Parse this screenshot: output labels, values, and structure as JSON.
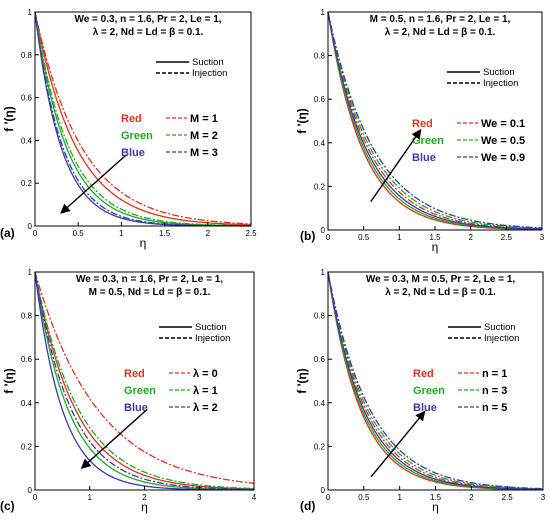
{
  "chart_data": [
    {
      "type": "line",
      "panel_label": "(a)",
      "params_line1": "We = 0.3, n = 1.6, Pr = 2,  Le = 1,",
      "params_line2": "λ = 2, Nd = Ld = β = 0.1.",
      "xlabel": "η",
      "ylabel": "f '(η)",
      "xlim": [
        0,
        2.5
      ],
      "ylim": [
        0,
        1
      ],
      "xticks": [
        "0",
        "0.5",
        "1",
        "1.5",
        "2",
        "2.5"
      ],
      "yticks": [
        "0",
        "0.2",
        "0.4",
        "0.6",
        "0.8",
        "1"
      ],
      "legend_styles": [
        {
          "label": "Suction",
          "dash": "solid"
        },
        {
          "label": "Injection",
          "dash": "dashed"
        }
      ],
      "legend_colors": [
        {
          "color_name": "Red",
          "param_label": "M = 1",
          "color": "#e0301e"
        },
        {
          "color_name": "Green",
          "param_label": "M = 2",
          "color": "#1faa1f"
        },
        {
          "color_name": "Blue",
          "param_label": "M = 3",
          "color": "#3a3aaa"
        }
      ],
      "arrow": {
        "from": [
          1.05,
          0.33
        ],
        "to": [
          0.3,
          0.06
        ]
      },
      "series": [
        {
          "color": "#e0301e",
          "dash": "solid",
          "k": 2.1
        },
        {
          "color": "#e0301e",
          "dash": "dashed",
          "k": 1.85
        },
        {
          "color": "#1faa1f",
          "dash": "solid",
          "k": 2.75
        },
        {
          "color": "#1faa1f",
          "dash": "dashed",
          "k": 2.55
        },
        {
          "color": "#3a3aaa",
          "dash": "solid",
          "k": 3.3
        },
        {
          "color": "#3a3aaa",
          "dash": "dashed",
          "k": 3.1
        }
      ]
    },
    {
      "type": "line",
      "panel_label": "(b)",
      "params_line1": "M = 0.5, n = 1.6, Pr = 2,  Le = 1,",
      "params_line2": "λ = 2, Nd = Ld = β = 0.1.",
      "xlabel": "η",
      "ylabel": "f '(η)",
      "xlim": [
        0,
        3
      ],
      "ylim": [
        0,
        1
      ],
      "xticks": [
        "0",
        "0.5",
        "1",
        "1.5",
        "2",
        "2.5",
        "3"
      ],
      "yticks": [
        "0",
        "0.2",
        "0.4",
        "0.6",
        "0.8",
        "1"
      ],
      "legend_styles": [
        {
          "label": "Suction",
          "dash": "solid"
        },
        {
          "label": "Injection",
          "dash": "dashed"
        }
      ],
      "legend_colors": [
        {
          "color_name": "Red",
          "param_label": "We = 0.1",
          "color": "#e0301e"
        },
        {
          "color_name": "Green",
          "param_label": "We = 0.5",
          "color": "#1faa1f"
        },
        {
          "color_name": "Blue",
          "param_label": "We = 0.9",
          "color": "#3a3aaa"
        }
      ],
      "arrow": {
        "from": [
          0.6,
          0.13
        ],
        "to": [
          1.3,
          0.46
        ]
      },
      "series": [
        {
          "color": "#e0301e",
          "dash": "solid",
          "k": 2.05
        },
        {
          "color": "#e0301e",
          "dash": "dashed",
          "k": 1.75
        },
        {
          "color": "#1faa1f",
          "dash": "solid",
          "k": 1.95
        },
        {
          "color": "#1faa1f",
          "dash": "dashed",
          "k": 1.65
        },
        {
          "color": "#3a3aaa",
          "dash": "solid",
          "k": 1.85
        },
        {
          "color": "#3a3aaa",
          "dash": "dashed",
          "k": 1.55
        }
      ]
    },
    {
      "type": "line",
      "panel_label": "(c)",
      "params_line1": "We = 0.3, n = 1.6, Pr = 2,  Le = 1,",
      "params_line2": "M = 0.5, Nd = Ld = β = 0.1.",
      "xlabel": "η",
      "ylabel": "f '(η)",
      "xlim": [
        0,
        4
      ],
      "ylim": [
        0,
        1
      ],
      "xticks": [
        "0",
        "1",
        "2",
        "3",
        "4"
      ],
      "yticks": [
        "0",
        "0.2",
        "0.4",
        "0.6",
        "0.8",
        "1"
      ],
      "legend_styles": [
        {
          "label": "Suction",
          "dash": "solid"
        },
        {
          "label": "Injection",
          "dash": "dashed"
        }
      ],
      "legend_colors": [
        {
          "color_name": "Red",
          "param_label": "λ = 0",
          "color": "#e0301e"
        },
        {
          "color_name": "Green",
          "param_label": "λ = 1",
          "color": "#1faa1f"
        },
        {
          "color_name": "Blue",
          "param_label": "λ = 2",
          "color": "#3a3aaa"
        }
      ],
      "arrow": {
        "from": [
          2.05,
          0.37
        ],
        "to": [
          0.85,
          0.1
        ]
      },
      "series": [
        {
          "color": "#e0301e",
          "dash": "solid",
          "k": 1.35
        },
        {
          "color": "#e0301e",
          "dash": "dashed",
          "k": 0.87
        },
        {
          "color": "#1faa1f",
          "dash": "solid",
          "k": 1.65
        },
        {
          "color": "#1faa1f",
          "dash": "dashed",
          "k": 1.25
        },
        {
          "color": "#3a3aaa",
          "dash": "solid",
          "k": 2.0
        },
        {
          "color": "#3a3aaa",
          "dash": "dashed",
          "k": 1.5
        }
      ]
    },
    {
      "type": "line",
      "panel_label": "(d)",
      "params_line1": "We = 0.3, M = 0.5, Pr = 2,  Le = 1,",
      "params_line2": "λ = 2, Nd = Ld = β = 0.1.",
      "xlabel": "η",
      "ylabel": "f '(η)",
      "xlim": [
        0,
        3
      ],
      "ylim": [
        0,
        1
      ],
      "xticks": [
        "0",
        "0.5",
        "1",
        "1.5",
        "2",
        "2.5",
        "3"
      ],
      "yticks": [
        "0",
        "0.2",
        "0.4",
        "0.6",
        "0.8",
        "1"
      ],
      "legend_styles": [
        {
          "label": "Suction",
          "dash": "solid"
        },
        {
          "label": "Injection",
          "dash": "dashed"
        }
      ],
      "legend_colors": [
        {
          "color_name": "Red",
          "param_label": "n = 1",
          "color": "#e0301e"
        },
        {
          "color_name": "Green",
          "param_label": "n = 3",
          "color": "#1faa1f"
        },
        {
          "color_name": "Blue",
          "param_label": "n = 5",
          "color": "#3a3aaa"
        }
      ],
      "arrow": {
        "from": [
          0.6,
          0.06
        ],
        "to": [
          1.35,
          0.36
        ]
      },
      "series": [
        {
          "color": "#e0301e",
          "dash": "solid",
          "k": 2.2
        },
        {
          "color": "#e0301e",
          "dash": "dashed",
          "k": 1.9
        },
        {
          "color": "#1faa1f",
          "dash": "solid",
          "k": 2.1
        },
        {
          "color": "#1faa1f",
          "dash": "dashed",
          "k": 1.8
        },
        {
          "color": "#3a3aaa",
          "dash": "solid",
          "k": 2.0
        },
        {
          "color": "#3a3aaa",
          "dash": "dashed",
          "k": 1.7
        }
      ]
    }
  ]
}
